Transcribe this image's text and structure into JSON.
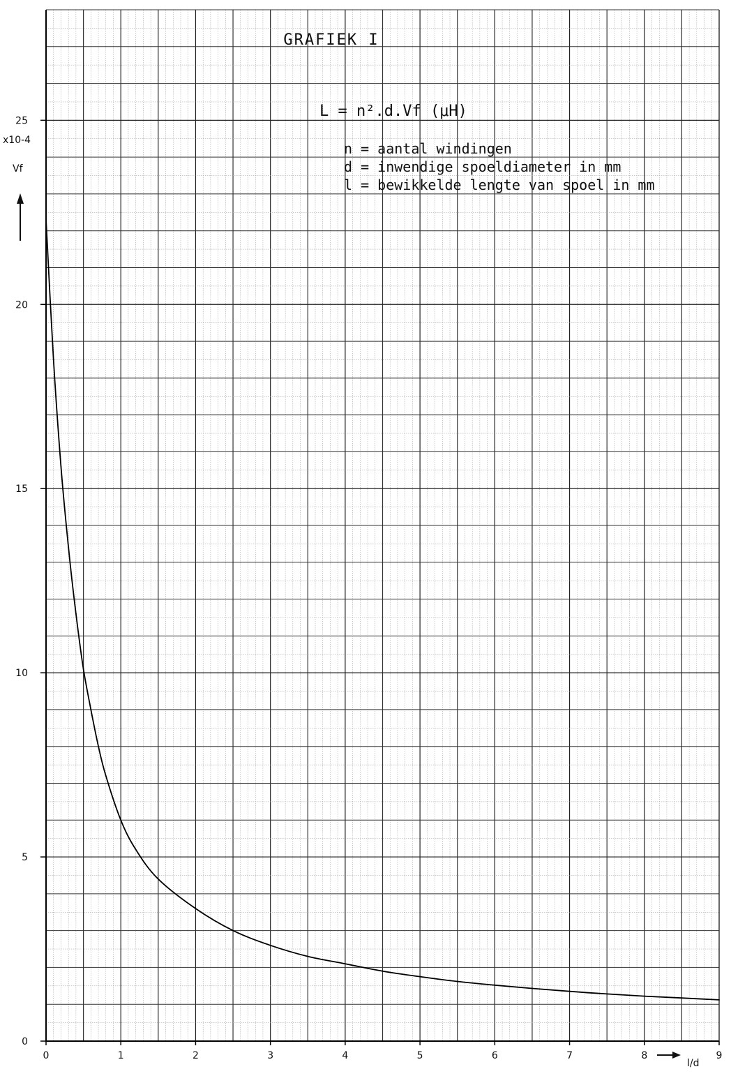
{
  "chart_data": {
    "type": "line",
    "title": "GRAFIEK I",
    "formula": "L = n².d.Vf (μH)",
    "legend": [
      "n = aantal windingen",
      "d = inwendige spoeldiameter in mm",
      "l = bewikkelde lengte van spoel in mm"
    ],
    "ylabel": "Vf",
    "yunit": "x10-4",
    "xlabel": "l/d",
    "xlim": [
      0,
      9
    ],
    "ylim": [
      0,
      28
    ],
    "xticks": [
      "0",
      "1",
      "2",
      "3",
      "4",
      "5",
      "6",
      "7",
      "8",
      "9"
    ],
    "yticks": [
      "0",
      "5",
      "10",
      "15",
      "20",
      "25"
    ],
    "grid": true,
    "series": [
      {
        "x": [
          0,
          0.1,
          0.2,
          0.3,
          0.4,
          0.5,
          0.6,
          0.7,
          0.8,
          1.0,
          1.2,
          1.5,
          2.0,
          2.5,
          3.0,
          3.5,
          4.0,
          4.5,
          5.0,
          5.5,
          6.0,
          6.5,
          7.0,
          7.5,
          8.0,
          8.5,
          9.0
        ],
        "y": [
          22.3,
          18.5,
          15.6,
          13.4,
          11.6,
          10.1,
          9.0,
          8.0,
          7.2,
          6.0,
          5.2,
          4.4,
          3.6,
          3.0,
          2.6,
          2.3,
          2.1,
          1.9,
          1.75,
          1.62,
          1.52,
          1.43,
          1.35,
          1.28,
          1.22,
          1.17,
          1.12
        ]
      }
    ]
  }
}
